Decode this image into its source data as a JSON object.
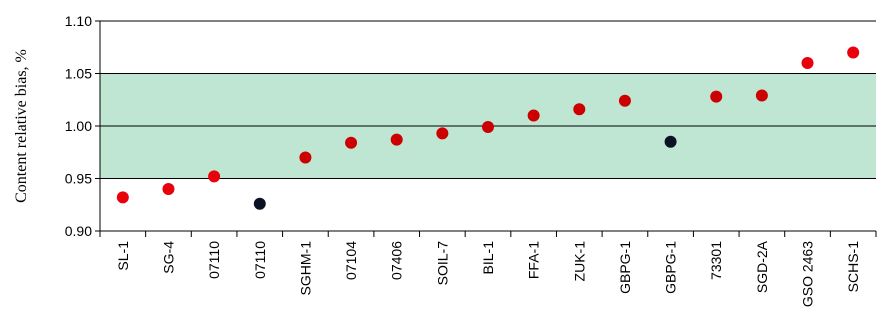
{
  "chart_data": {
    "type": "scatter",
    "ylabel": "Content relative bias, %",
    "ylim": [
      0.9,
      1.1
    ],
    "yticks": [
      "0.90",
      "0.95",
      "1.00",
      "1.05",
      "1.10"
    ],
    "ytick_values": [
      0.9,
      0.95,
      1.0,
      1.05,
      1.1
    ],
    "grid": "horizontal",
    "band": {
      "from": 0.95,
      "to": 1.05,
      "color": "#bfe6d2"
    },
    "categories": [
      "SL-1",
      "SG-4",
      "07110",
      "07110",
      "SGHM-1",
      "07104",
      "07406",
      "SOIL-7",
      "BIL-1",
      "FFA-1",
      "ZUK-1",
      "GBPG-1",
      "GBPG-1",
      "73301",
      "SGD-2A",
      "GSO 2463",
      "SCHS-1"
    ],
    "values": [
      0.932,
      0.94,
      0.952,
      0.926,
      0.97,
      0.984,
      0.987,
      0.993,
      0.999,
      1.01,
      1.016,
      1.024,
      0.985,
      1.028,
      1.029,
      1.06,
      1.07
    ],
    "point_colors": [
      "#e8000b",
      "#e8000b",
      "#e8000b",
      "#0c1224",
      "#cc0000",
      "#cc0000",
      "#cc0000",
      "#cc0000",
      "#cc0000",
      "#cc0000",
      "#cc0000",
      "#cc0000",
      "#0c1224",
      "#cc0000",
      "#cc0000",
      "#e8000b",
      "#e8000b"
    ]
  }
}
